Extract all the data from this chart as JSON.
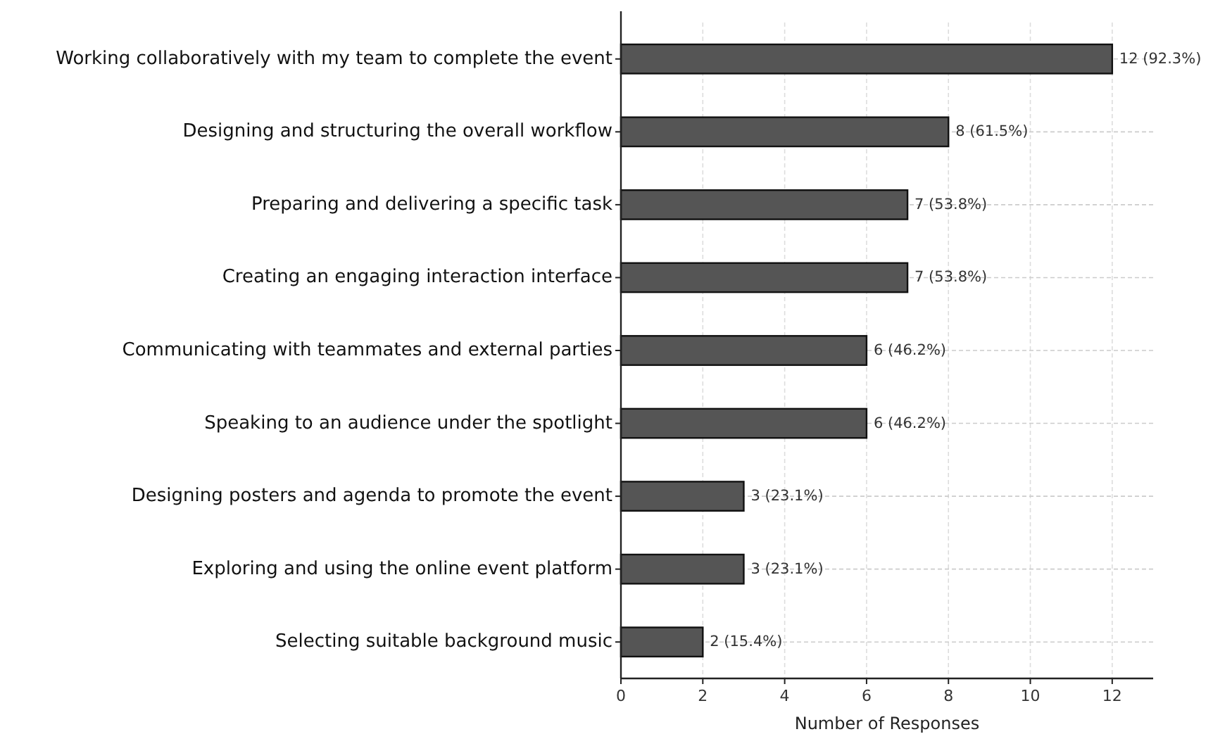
{
  "chart_data": {
    "type": "bar",
    "orientation": "horizontal",
    "xlabel": "Number of Responses",
    "categories": [
      "Working collaboratively with my team to complete the event",
      "Designing and structuring the overall workflow",
      "Preparing and delivering a specific task",
      "Creating an engaging interaction interface",
      "Communicating with teammates and external parties",
      "Speaking to an audience under the spotlight",
      "Designing posters and agenda to promote the event",
      "Exploring and using the online event platform",
      "Selecting suitable background music"
    ],
    "values": [
      12,
      8,
      7,
      7,
      6,
      6,
      3,
      3,
      2
    ],
    "value_labels": [
      "12 (92.3%)",
      "8 (61.5%)",
      "7 (53.8%)",
      "7 (53.8%)",
      "6 (46.2%)",
      "6 (46.2%)",
      "3 (23.1%)",
      "3 (23.1%)",
      "2 (15.4%)"
    ],
    "color": "#555555",
    "xlim": [
      0,
      13
    ],
    "xticks": [
      0,
      2,
      4,
      6,
      8,
      10,
      12
    ],
    "grid": true
  }
}
